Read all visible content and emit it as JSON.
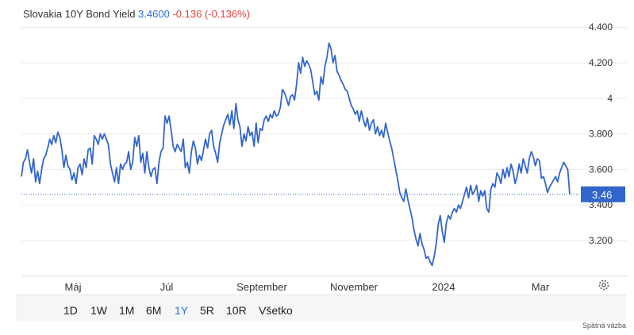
{
  "header": {
    "title": "Slovakia 10Y Bond Yield",
    "price": "3.4600",
    "change": "-0.136 (-0.136%)"
  },
  "colors": {
    "line": "#3366cc",
    "change_negative": "#e0403a",
    "active_range": "#2f6fd0"
  },
  "range_buttons": [
    "1D",
    "1W",
    "1M",
    "6M",
    "1Y",
    "5R",
    "10R",
    "Všetko"
  ],
  "active_range": "1Y",
  "feedback_label": "Spätná väzba",
  "settings_icon": "gear-icon",
  "chart_data": {
    "type": "line",
    "title": "Slovakia 10Y Bond Yield",
    "x_tick_labels": [
      "Máj",
      "Júl",
      "September",
      "November",
      "2024",
      "Mar"
    ],
    "y_tick_labels": [
      "4.400",
      "4.200",
      "4",
      "3.800",
      "3.600",
      "3.400",
      "3.200"
    ],
    "ylim": [
      3.0,
      4.42
    ],
    "grid": true,
    "current_value": 3.46,
    "current_value_label": "3.46",
    "series": [
      {
        "values": [
          3.56,
          3.64,
          3.66,
          3.71,
          3.64,
          3.58,
          3.66,
          3.53,
          3.59,
          3.52,
          3.6,
          3.66,
          3.68,
          3.72,
          3.77,
          3.74,
          3.79,
          3.75,
          3.81,
          3.78,
          3.71,
          3.61,
          3.68,
          3.62,
          3.6,
          3.54,
          3.58,
          3.52,
          3.61,
          3.63,
          3.57,
          3.66,
          3.61,
          3.71,
          3.72,
          3.63,
          3.79,
          3.77,
          3.74,
          3.8,
          3.77,
          3.8,
          3.77,
          3.74,
          3.63,
          3.58,
          3.53,
          3.61,
          3.52,
          3.63,
          3.6,
          3.63,
          3.64,
          3.7,
          3.6,
          3.64,
          3.78,
          3.73,
          3.79,
          3.64,
          3.69,
          3.58,
          3.7,
          3.61,
          3.56,
          3.6,
          3.61,
          3.52,
          3.64,
          3.7,
          3.72,
          3.9,
          3.86,
          3.9,
          3.82,
          3.73,
          3.7,
          3.74,
          3.72,
          3.7,
          3.77,
          3.61,
          3.64,
          3.58,
          3.7,
          3.76,
          3.72,
          3.63,
          3.68,
          3.65,
          3.71,
          3.77,
          3.72,
          3.8,
          3.82,
          3.73,
          3.69,
          3.64,
          3.75,
          3.8,
          3.85,
          3.88,
          3.91,
          3.85,
          3.93,
          3.83,
          3.97,
          3.88,
          3.84,
          3.73,
          3.8,
          3.76,
          3.84,
          3.79,
          3.81,
          3.73,
          3.86,
          3.75,
          3.83,
          3.82,
          3.88,
          3.9,
          3.87,
          3.91,
          3.89,
          3.93,
          3.9,
          3.91,
          3.95,
          4.05,
          4.03,
          4.0,
          3.96,
          4.01,
          4.02,
          3.99,
          4.08,
          4.2,
          4.14,
          4.23,
          4.18,
          4.21,
          4.19,
          4.16,
          4.09,
          4.02,
          4.04,
          3.99,
          4.12,
          4.08,
          4.18,
          4.23,
          4.31,
          4.28,
          4.2,
          4.24,
          4.15,
          4.13,
          4.1,
          4.08,
          4.05,
          4.04,
          4.0,
          3.96,
          3.94,
          3.91,
          3.93,
          3.87,
          3.93,
          3.88,
          3.84,
          3.89,
          3.82,
          3.86,
          3.88,
          3.8,
          3.84,
          3.79,
          3.82,
          3.78,
          3.86,
          3.81,
          3.76,
          3.72,
          3.66,
          3.6,
          3.54,
          3.47,
          3.44,
          3.42,
          3.49,
          3.43,
          3.38,
          3.33,
          3.26,
          3.21,
          3.17,
          3.24,
          3.18,
          3.15,
          3.1,
          3.11,
          3.08,
          3.06,
          3.11,
          3.18,
          3.29,
          3.34,
          3.25,
          3.19,
          3.3,
          3.34,
          3.32,
          3.36,
          3.38,
          3.36,
          3.4,
          3.38,
          3.42,
          3.46,
          3.5,
          3.44,
          3.51,
          3.46,
          3.48,
          3.51,
          3.42,
          3.48,
          3.45,
          3.48,
          3.38,
          3.36,
          3.49,
          3.52,
          3.5,
          3.58,
          3.56,
          3.52,
          3.6,
          3.55,
          3.61,
          3.56,
          3.63,
          3.59,
          3.52,
          3.56,
          3.63,
          3.58,
          3.66,
          3.62,
          3.58,
          3.66,
          3.7,
          3.67,
          3.62,
          3.66,
          3.65,
          3.55,
          3.56,
          3.52,
          3.47,
          3.5,
          3.52,
          3.54,
          3.56,
          3.53,
          3.58,
          3.61,
          3.64,
          3.62,
          3.6,
          3.46
        ]
      }
    ]
  }
}
